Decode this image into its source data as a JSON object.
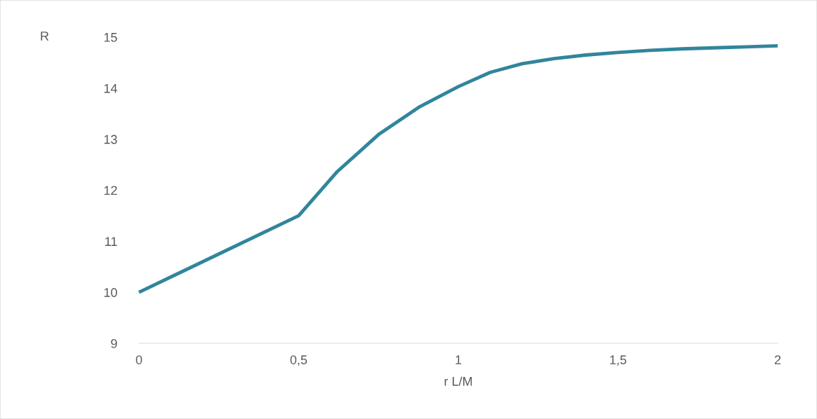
{
  "chart_data": {
    "type": "line",
    "xlabel": "r L/M",
    "ylabel": "R",
    "xlim": [
      0,
      2
    ],
    "xticks": [
      0,
      {
        "value": 0.5,
        "label": "0,5"
      },
      1,
      {
        "value": 1.5,
        "label": "1,5"
      },
      2
    ],
    "ylim": [
      9,
      15
    ],
    "yticks": [
      9,
      10,
      11,
      12,
      13,
      14,
      15
    ],
    "grid": false,
    "legend": false,
    "marker": "none",
    "line_style": "solid",
    "series": [
      {
        "color": "#31859c",
        "x": [
          0,
          0.25,
          0.5,
          0.62,
          0.75,
          0.88,
          1.0,
          1.1,
          1.2,
          1.3,
          1.4,
          1.5,
          1.6,
          1.7,
          1.8,
          1.9,
          2.0
        ],
        "values": [
          10,
          10.75,
          11.5,
          12.36,
          13.09,
          13.64,
          14.03,
          14.31,
          14.48,
          14.58,
          14.65,
          14.7,
          14.74,
          14.77,
          14.79,
          14.81,
          14.83
        ]
      }
    ]
  }
}
